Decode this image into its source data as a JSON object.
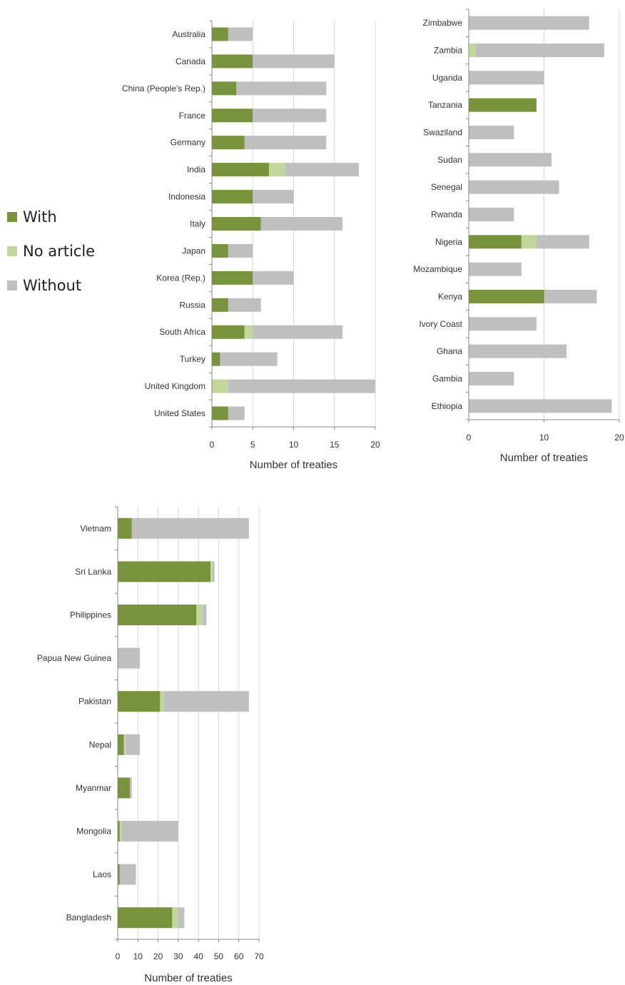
{
  "legend": {
    "items": [
      {
        "label": "With",
        "color": "#77933c"
      },
      {
        "label": "No article",
        "color": "#c3d69b"
      },
      {
        "label": "Without",
        "color": "#bfbfbf"
      }
    ]
  },
  "chart_data": [
    {
      "type": "bar",
      "orientation": "horizontal",
      "stacked": true,
      "categories": [
        "Australia",
        "Canada",
        "China (People's Rep.)",
        "France",
        "Germany",
        "India",
        "Indonesia",
        "Italy",
        "Japan",
        "Korea (Rep.)",
        "Russia",
        "South Africa",
        "Turkey",
        "United Kingdom",
        "United States"
      ],
      "series": [
        {
          "name": "With",
          "color": "#77933c",
          "values": [
            2,
            5,
            3,
            5,
            4,
            7,
            5,
            6,
            2,
            5,
            2,
            4,
            1,
            0,
            2
          ]
        },
        {
          "name": "No article",
          "color": "#c3d69b",
          "values": [
            0,
            0,
            0,
            0,
            0,
            2,
            0,
            0,
            0,
            0,
            0,
            1,
            0,
            2,
            0
          ]
        },
        {
          "name": "Without",
          "color": "#bfbfbf",
          "values": [
            3,
            10,
            11,
            9,
            10,
            9,
            5,
            10,
            3,
            5,
            4,
            11,
            7,
            18,
            2
          ]
        }
      ],
      "xlabel": "Number of treaties",
      "xlim": [
        0,
        20
      ],
      "xticks": [
        0,
        5,
        10,
        15,
        20
      ],
      "grid": true
    },
    {
      "type": "bar",
      "orientation": "horizontal",
      "stacked": true,
      "categories": [
        "Zimbabwe",
        "Zambia",
        "Uganda",
        "Tanzania",
        "Swaziland",
        "Sudan",
        "Senegal",
        "Rwanda",
        "Nigeria",
        "Mozambique",
        "Kenya",
        "Ivory Coast",
        "Ghana",
        "Gambia",
        "Ethiopia"
      ],
      "series": [
        {
          "name": "With",
          "color": "#77933c",
          "values": [
            0,
            0,
            0,
            9,
            0,
            0,
            0,
            0,
            7,
            0,
            10,
            0,
            0,
            0,
            0
          ]
        },
        {
          "name": "No article",
          "color": "#c3d69b",
          "values": [
            0,
            1,
            0,
            0,
            0,
            0,
            0,
            0,
            2,
            0,
            0,
            0,
            0,
            0,
            0
          ]
        },
        {
          "name": "Without",
          "color": "#bfbfbf",
          "values": [
            16,
            17,
            10,
            0,
            6,
            11,
            12,
            6,
            7,
            7,
            7,
            9,
            13,
            6,
            19
          ]
        }
      ],
      "xlabel": "Number of treaties",
      "xlim": [
        0,
        20
      ],
      "xticks": [
        0,
        10,
        20
      ],
      "grid": true
    },
    {
      "type": "bar",
      "orientation": "horizontal",
      "stacked": true,
      "categories": [
        "Vietnam",
        "Sri Lanka",
        "Philippines",
        "Papua New Guinea",
        "Pakistan",
        "Nepal",
        "Myanmar",
        "Mongolia",
        "Laos",
        "Bangladesh"
      ],
      "series": [
        {
          "name": "With",
          "color": "#77933c",
          "values": [
            7,
            46,
            39,
            0,
            21,
            3,
            6,
            1,
            1,
            27
          ]
        },
        {
          "name": "No article",
          "color": "#c3d69b",
          "values": [
            0,
            1,
            3,
            0,
            2,
            1,
            0,
            1,
            0,
            3
          ]
        },
        {
          "name": "Without",
          "color": "#bfbfbf",
          "values": [
            58,
            1,
            2,
            11,
            42,
            7,
            1,
            28,
            8,
            3
          ]
        }
      ],
      "xlabel": "Number of treaties",
      "xlim": [
        0,
        70
      ],
      "xticks": [
        0,
        10,
        20,
        30,
        40,
        50,
        60,
        70
      ],
      "grid": true
    }
  ]
}
